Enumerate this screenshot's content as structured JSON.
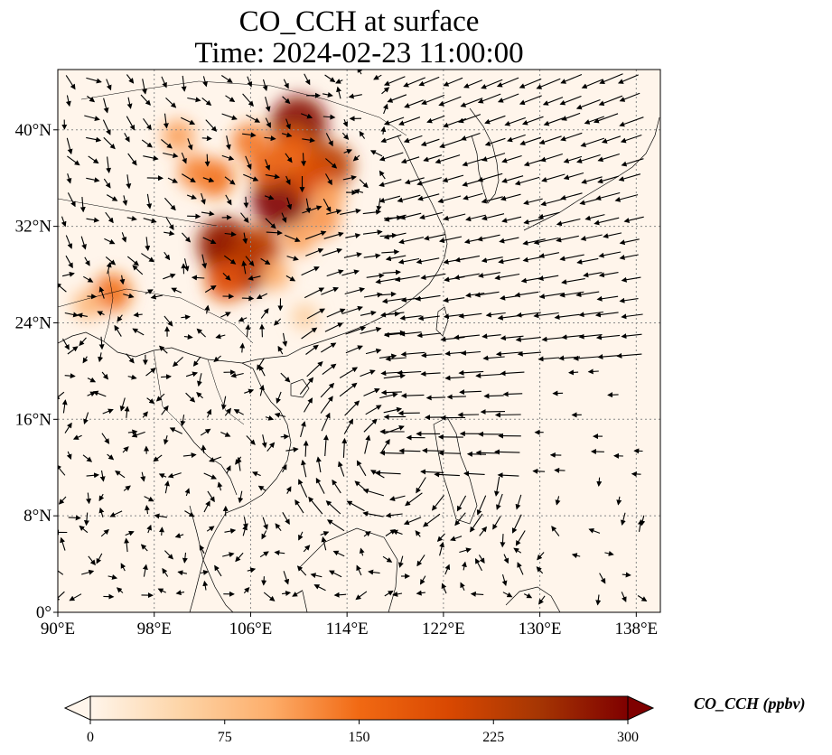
{
  "title": {
    "line1": "CO_CCH at surface",
    "line2": "Time: 2024-02-23 11:00:00"
  },
  "map": {
    "lon_range": [
      90,
      140
    ],
    "lat_range": [
      0,
      45
    ],
    "lon_ticks": [
      {
        "value": 90,
        "label": "90°E"
      },
      {
        "value": 98,
        "label": "98°E"
      },
      {
        "value": 106,
        "label": "106°E"
      },
      {
        "value": 114,
        "label": "114°E"
      },
      {
        "value": 122,
        "label": "122°E"
      },
      {
        "value": 130,
        "label": "130°E"
      },
      {
        "value": 138,
        "label": "138°E"
      }
    ],
    "lat_ticks": [
      {
        "value": 0,
        "label": "0°"
      },
      {
        "value": 8,
        "label": "8°N"
      },
      {
        "value": 16,
        "label": "16°N"
      },
      {
        "value": 24,
        "label": "24°N"
      },
      {
        "value": 32,
        "label": "32°N"
      },
      {
        "value": 40,
        "label": "40°N"
      }
    ],
    "gridlines": true,
    "background_color": "#fff5eb",
    "coastline_color": "#000000",
    "vector_color": "#000000"
  },
  "colorbar": {
    "label": "CO_CCH (ppbv)",
    "min": 0,
    "max": 300,
    "extend": "both",
    "colormap": "OrRd-like",
    "colors": [
      "#fff5eb",
      "#fdd5a8",
      "#fdae6b",
      "#f16913",
      "#d94801",
      "#a63603",
      "#7f0000"
    ],
    "ticks": [
      {
        "value": 0,
        "label": "0"
      },
      {
        "value": 75,
        "label": "75"
      },
      {
        "value": 150,
        "label": "150"
      },
      {
        "value": 225,
        "label": "225"
      },
      {
        "value": 300,
        "label": "300"
      }
    ]
  },
  "concentration_field": [
    {
      "lon": 104.5,
      "lat": 29.5,
      "value": 300
    },
    {
      "lon": 105.5,
      "lat": 28.8,
      "value": 290
    },
    {
      "lon": 103.8,
      "lat": 30.5,
      "value": 270
    },
    {
      "lon": 106.5,
      "lat": 30.0,
      "value": 230
    },
    {
      "lon": 104.0,
      "lat": 27.5,
      "value": 180
    },
    {
      "lon": 108.5,
      "lat": 34.2,
      "value": 300
    },
    {
      "lon": 110.0,
      "lat": 40.5,
      "value": 290
    },
    {
      "lon": 112.5,
      "lat": 37.0,
      "value": 230
    },
    {
      "lon": 111.0,
      "lat": 36.0,
      "value": 200
    },
    {
      "lon": 107.5,
      "lat": 37.0,
      "value": 170
    },
    {
      "lon": 103.0,
      "lat": 36.0,
      "value": 150
    },
    {
      "lon": 101.5,
      "lat": 36.5,
      "value": 130
    },
    {
      "lon": 106.0,
      "lat": 39.0,
      "value": 140
    },
    {
      "lon": 109.5,
      "lat": 38.5,
      "value": 160
    },
    {
      "lon": 112.0,
      "lat": 32.5,
      "value": 120
    },
    {
      "lon": 110.0,
      "lat": 31.0,
      "value": 110
    },
    {
      "lon": 108.0,
      "lat": 28.0,
      "value": 100
    },
    {
      "lon": 100.0,
      "lat": 39.5,
      "value": 110
    },
    {
      "lon": 94.5,
      "lat": 26.5,
      "value": 150
    },
    {
      "lon": 92.5,
      "lat": 25.5,
      "value": 90
    },
    {
      "lon": 110.5,
      "lat": 24.5,
      "value": 60
    },
    {
      "lon": 112.5,
      "lat": 34.5,
      "value": 110
    }
  ]
}
